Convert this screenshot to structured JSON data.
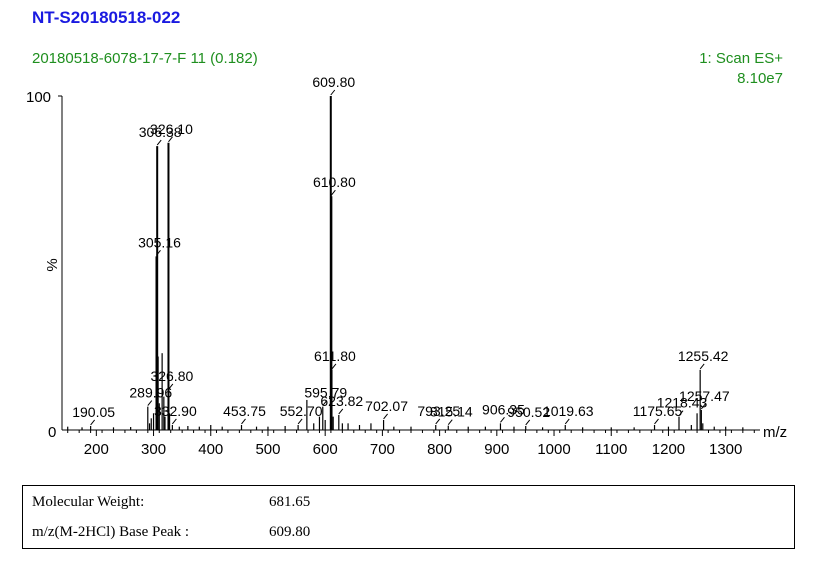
{
  "header": {
    "sample_id": "NT-S20180518-022",
    "run_info": "20180518-6078-17-7-F 11 (0.182)",
    "scan_mode": "1: Scan ES+",
    "intensity": "8.10e7"
  },
  "colors": {
    "title": "#1a1ae0",
    "subtitle": "#1f8f1f",
    "axis": "#000000"
  },
  "chart_data": {
    "type": "bar",
    "title": "NT-S20180518-022",
    "xlabel": "m/z",
    "ylabel": "%",
    "xlim": [
      140,
      1360
    ],
    "ylim": [
      0,
      100
    ],
    "x_ticks": [
      200,
      300,
      400,
      500,
      600,
      700,
      800,
      900,
      1000,
      1100,
      1200,
      1300
    ],
    "y_ticks": [
      0,
      100
    ],
    "grid": false,
    "peaks": [
      {
        "mz": 150,
        "rel": 1.0
      },
      {
        "mz": 175,
        "rel": 0.8
      },
      {
        "mz": 190.05,
        "rel": 1.2
      },
      {
        "mz": 230,
        "rel": 0.8
      },
      {
        "mz": 260,
        "rel": 0.9
      },
      {
        "mz": 289.96,
        "rel": 7.0
      },
      {
        "mz": 293,
        "rel": 2.0
      },
      {
        "mz": 296,
        "rel": 3.5
      },
      {
        "mz": 300,
        "rel": 5.0
      },
      {
        "mz": 305.16,
        "rel": 52.0
      },
      {
        "mz": 306.38,
        "rel": 85.0
      },
      {
        "mz": 308,
        "rel": 22.0
      },
      {
        "mz": 310,
        "rel": 8.0
      },
      {
        "mz": 315,
        "rel": 23.0
      },
      {
        "mz": 318,
        "rel": 10.0
      },
      {
        "mz": 320,
        "rel": 4.0
      },
      {
        "mz": 326.1,
        "rel": 86.0
      },
      {
        "mz": 326.8,
        "rel": 12.0
      },
      {
        "mz": 328,
        "rel": 5.0
      },
      {
        "mz": 332.9,
        "rel": 1.5
      },
      {
        "mz": 345,
        "rel": 1.0
      },
      {
        "mz": 360,
        "rel": 1.2
      },
      {
        "mz": 380,
        "rel": 1.0
      },
      {
        "mz": 400,
        "rel": 1.5
      },
      {
        "mz": 420,
        "rel": 1.0
      },
      {
        "mz": 453.75,
        "rel": 1.5
      },
      {
        "mz": 480,
        "rel": 1.0
      },
      {
        "mz": 500,
        "rel": 1.0
      },
      {
        "mz": 530,
        "rel": 1.2
      },
      {
        "mz": 552.7,
        "rel": 1.5
      },
      {
        "mz": 568,
        "rel": 9.0
      },
      {
        "mz": 580,
        "rel": 2.0
      },
      {
        "mz": 590,
        "rel": 4.0
      },
      {
        "mz": 595.79,
        "rel": 7.0
      },
      {
        "mz": 600,
        "rel": 3.0
      },
      {
        "mz": 609.8,
        "rel": 100.0
      },
      {
        "mz": 610.8,
        "rel": 70.0
      },
      {
        "mz": 611.8,
        "rel": 18.0
      },
      {
        "mz": 614,
        "rel": 4.0
      },
      {
        "mz": 623.82,
        "rel": 4.5
      },
      {
        "mz": 630,
        "rel": 2.0
      },
      {
        "mz": 640,
        "rel": 2.0
      },
      {
        "mz": 660,
        "rel": 1.5
      },
      {
        "mz": 680,
        "rel": 2.0
      },
      {
        "mz": 702.07,
        "rel": 3.0
      },
      {
        "mz": 720,
        "rel": 1.0
      },
      {
        "mz": 750,
        "rel": 1.0
      },
      {
        "mz": 793.25,
        "rel": 1.5
      },
      {
        "mz": 815.14,
        "rel": 1.3
      },
      {
        "mz": 850,
        "rel": 1.0
      },
      {
        "mz": 880,
        "rel": 1.0
      },
      {
        "mz": 906.35,
        "rel": 2.0
      },
      {
        "mz": 930,
        "rel": 1.0
      },
      {
        "mz": 950.52,
        "rel": 1.2
      },
      {
        "mz": 980,
        "rel": 0.8
      },
      {
        "mz": 1019.63,
        "rel": 1.5
      },
      {
        "mz": 1050,
        "rel": 0.8
      },
      {
        "mz": 1100,
        "rel": 0.8
      },
      {
        "mz": 1140,
        "rel": 0.8
      },
      {
        "mz": 1175.65,
        "rel": 1.5
      },
      {
        "mz": 1200,
        "rel": 1.0
      },
      {
        "mz": 1218.43,
        "rel": 4.0
      },
      {
        "mz": 1240,
        "rel": 1.5
      },
      {
        "mz": 1250,
        "rel": 5.0
      },
      {
        "mz": 1255.42,
        "rel": 18.0
      },
      {
        "mz": 1257.47,
        "rel": 6.0
      },
      {
        "mz": 1260,
        "rel": 2.0
      },
      {
        "mz": 1280,
        "rel": 1.0
      },
      {
        "mz": 1300,
        "rel": 1.0
      },
      {
        "mz": 1330,
        "rel": 0.8
      }
    ],
    "peak_labels": [
      {
        "text": "190.05",
        "mz": 190.05,
        "rel": 1.2
      },
      {
        "text": "289.96",
        "mz": 289.96,
        "rel": 7.0
      },
      {
        "text": "305.16",
        "mz": 305.16,
        "rel": 52.0
      },
      {
        "text": "306.38",
        "mz": 306.38,
        "rel": 85.0
      },
      {
        "text": "326.10",
        "mz": 326.1,
        "rel": 86.0
      },
      {
        "text": "326.80",
        "mz": 326.8,
        "rel": 12.0
      },
      {
        "text": "332.90",
        "mz": 332.9,
        "rel": 1.5
      },
      {
        "text": "453.75",
        "mz": 453.75,
        "rel": 1.5
      },
      {
        "text": "552.70",
        "mz": 552.7,
        "rel": 1.5
      },
      {
        "text": "595.79",
        "mz": 595.79,
        "rel": 7.0
      },
      {
        "text": "609.80",
        "mz": 609.8,
        "rel": 100.0
      },
      {
        "text": "610.80",
        "mz": 610.8,
        "rel": 70.0
      },
      {
        "text": "611.80",
        "mz": 611.8,
        "rel": 18.0
      },
      {
        "text": "623.82",
        "mz": 623.82,
        "rel": 4.5
      },
      {
        "text": "702.07",
        "mz": 702.07,
        "rel": 3.0
      },
      {
        "text": "793.25",
        "mz": 793.25,
        "rel": 1.5
      },
      {
        "text": "815.14",
        "mz": 815.14,
        "rel": 1.3
      },
      {
        "text": "906.35",
        "mz": 906.35,
        "rel": 2.0
      },
      {
        "text": "950.52",
        "mz": 950.52,
        "rel": 1.2
      },
      {
        "text": "1019.63",
        "mz": 1019.63,
        "rel": 1.5
      },
      {
        "text": "1175.65",
        "mz": 1175.65,
        "rel": 1.5
      },
      {
        "text": "1218.43",
        "mz": 1218.43,
        "rel": 4.0
      },
      {
        "text": "1255.42",
        "mz": 1255.42,
        "rel": 18.0
      },
      {
        "text": "1257.47",
        "mz": 1257.47,
        "rel": 6.0
      }
    ]
  },
  "info_table": {
    "rows": [
      {
        "label": "Molecular Weight:",
        "value": "681.65"
      },
      {
        "label": "m/z(M-2HCl) Base Peak :",
        "value": "609.80"
      }
    ]
  }
}
